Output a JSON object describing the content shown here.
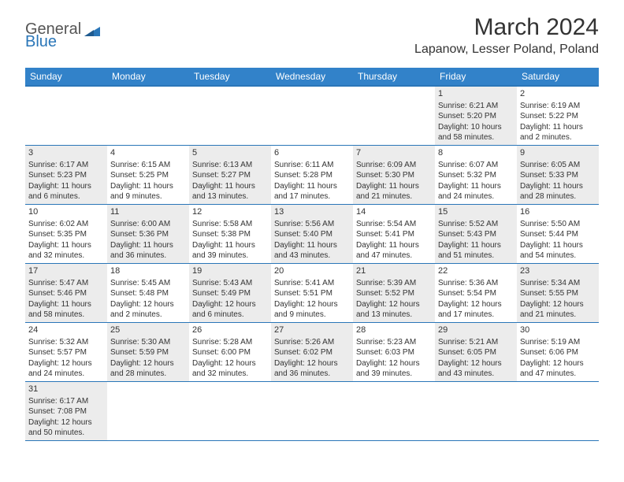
{
  "brand": {
    "general": "General",
    "blue": "Blue"
  },
  "title": "March 2024",
  "location": "Lapanow, Lesser Poland, Poland",
  "day_headers": [
    "Sunday",
    "Monday",
    "Tuesday",
    "Wednesday",
    "Thursday",
    "Friday",
    "Saturday"
  ],
  "colors": {
    "header_bg": "#3282c9",
    "border": "#2a76b8",
    "shade": "#ececec",
    "text": "#333333",
    "logo_gray": "#555555",
    "logo_blue": "#2a76b8"
  },
  "weeks": [
    [
      {
        "empty": true
      },
      {
        "empty": true
      },
      {
        "empty": true
      },
      {
        "empty": true
      },
      {
        "empty": true
      },
      {
        "num": "1",
        "shaded": true,
        "sunrise": "Sunrise: 6:21 AM",
        "sunset": "Sunset: 5:20 PM",
        "daylight": "Daylight: 10 hours and 58 minutes."
      },
      {
        "num": "2",
        "shaded": false,
        "sunrise": "Sunrise: 6:19 AM",
        "sunset": "Sunset: 5:22 PM",
        "daylight": "Daylight: 11 hours and 2 minutes."
      }
    ],
    [
      {
        "num": "3",
        "shaded": true,
        "sunrise": "Sunrise: 6:17 AM",
        "sunset": "Sunset: 5:23 PM",
        "daylight": "Daylight: 11 hours and 6 minutes."
      },
      {
        "num": "4",
        "shaded": false,
        "sunrise": "Sunrise: 6:15 AM",
        "sunset": "Sunset: 5:25 PM",
        "daylight": "Daylight: 11 hours and 9 minutes."
      },
      {
        "num": "5",
        "shaded": true,
        "sunrise": "Sunrise: 6:13 AM",
        "sunset": "Sunset: 5:27 PM",
        "daylight": "Daylight: 11 hours and 13 minutes."
      },
      {
        "num": "6",
        "shaded": false,
        "sunrise": "Sunrise: 6:11 AM",
        "sunset": "Sunset: 5:28 PM",
        "daylight": "Daylight: 11 hours and 17 minutes."
      },
      {
        "num": "7",
        "shaded": true,
        "sunrise": "Sunrise: 6:09 AM",
        "sunset": "Sunset: 5:30 PM",
        "daylight": "Daylight: 11 hours and 21 minutes."
      },
      {
        "num": "8",
        "shaded": false,
        "sunrise": "Sunrise: 6:07 AM",
        "sunset": "Sunset: 5:32 PM",
        "daylight": "Daylight: 11 hours and 24 minutes."
      },
      {
        "num": "9",
        "shaded": true,
        "sunrise": "Sunrise: 6:05 AM",
        "sunset": "Sunset: 5:33 PM",
        "daylight": "Daylight: 11 hours and 28 minutes."
      }
    ],
    [
      {
        "num": "10",
        "shaded": false,
        "sunrise": "Sunrise: 6:02 AM",
        "sunset": "Sunset: 5:35 PM",
        "daylight": "Daylight: 11 hours and 32 minutes."
      },
      {
        "num": "11",
        "shaded": true,
        "sunrise": "Sunrise: 6:00 AM",
        "sunset": "Sunset: 5:36 PM",
        "daylight": "Daylight: 11 hours and 36 minutes."
      },
      {
        "num": "12",
        "shaded": false,
        "sunrise": "Sunrise: 5:58 AM",
        "sunset": "Sunset: 5:38 PM",
        "daylight": "Daylight: 11 hours and 39 minutes."
      },
      {
        "num": "13",
        "shaded": true,
        "sunrise": "Sunrise: 5:56 AM",
        "sunset": "Sunset: 5:40 PM",
        "daylight": "Daylight: 11 hours and 43 minutes."
      },
      {
        "num": "14",
        "shaded": false,
        "sunrise": "Sunrise: 5:54 AM",
        "sunset": "Sunset: 5:41 PM",
        "daylight": "Daylight: 11 hours and 47 minutes."
      },
      {
        "num": "15",
        "shaded": true,
        "sunrise": "Sunrise: 5:52 AM",
        "sunset": "Sunset: 5:43 PM",
        "daylight": "Daylight: 11 hours and 51 minutes."
      },
      {
        "num": "16",
        "shaded": false,
        "sunrise": "Sunrise: 5:50 AM",
        "sunset": "Sunset: 5:44 PM",
        "daylight": "Daylight: 11 hours and 54 minutes."
      }
    ],
    [
      {
        "num": "17",
        "shaded": true,
        "sunrise": "Sunrise: 5:47 AM",
        "sunset": "Sunset: 5:46 PM",
        "daylight": "Daylight: 11 hours and 58 minutes."
      },
      {
        "num": "18",
        "shaded": false,
        "sunrise": "Sunrise: 5:45 AM",
        "sunset": "Sunset: 5:48 PM",
        "daylight": "Daylight: 12 hours and 2 minutes."
      },
      {
        "num": "19",
        "shaded": true,
        "sunrise": "Sunrise: 5:43 AM",
        "sunset": "Sunset: 5:49 PM",
        "daylight": "Daylight: 12 hours and 6 minutes."
      },
      {
        "num": "20",
        "shaded": false,
        "sunrise": "Sunrise: 5:41 AM",
        "sunset": "Sunset: 5:51 PM",
        "daylight": "Daylight: 12 hours and 9 minutes."
      },
      {
        "num": "21",
        "shaded": true,
        "sunrise": "Sunrise: 5:39 AM",
        "sunset": "Sunset: 5:52 PM",
        "daylight": "Daylight: 12 hours and 13 minutes."
      },
      {
        "num": "22",
        "shaded": false,
        "sunrise": "Sunrise: 5:36 AM",
        "sunset": "Sunset: 5:54 PM",
        "daylight": "Daylight: 12 hours and 17 minutes."
      },
      {
        "num": "23",
        "shaded": true,
        "sunrise": "Sunrise: 5:34 AM",
        "sunset": "Sunset: 5:55 PM",
        "daylight": "Daylight: 12 hours and 21 minutes."
      }
    ],
    [
      {
        "num": "24",
        "shaded": false,
        "sunrise": "Sunrise: 5:32 AM",
        "sunset": "Sunset: 5:57 PM",
        "daylight": "Daylight: 12 hours and 24 minutes."
      },
      {
        "num": "25",
        "shaded": true,
        "sunrise": "Sunrise: 5:30 AM",
        "sunset": "Sunset: 5:59 PM",
        "daylight": "Daylight: 12 hours and 28 minutes."
      },
      {
        "num": "26",
        "shaded": false,
        "sunrise": "Sunrise: 5:28 AM",
        "sunset": "Sunset: 6:00 PM",
        "daylight": "Daylight: 12 hours and 32 minutes."
      },
      {
        "num": "27",
        "shaded": true,
        "sunrise": "Sunrise: 5:26 AM",
        "sunset": "Sunset: 6:02 PM",
        "daylight": "Daylight: 12 hours and 36 minutes."
      },
      {
        "num": "28",
        "shaded": false,
        "sunrise": "Sunrise: 5:23 AM",
        "sunset": "Sunset: 6:03 PM",
        "daylight": "Daylight: 12 hours and 39 minutes."
      },
      {
        "num": "29",
        "shaded": true,
        "sunrise": "Sunrise: 5:21 AM",
        "sunset": "Sunset: 6:05 PM",
        "daylight": "Daylight: 12 hours and 43 minutes."
      },
      {
        "num": "30",
        "shaded": false,
        "sunrise": "Sunrise: 5:19 AM",
        "sunset": "Sunset: 6:06 PM",
        "daylight": "Daylight: 12 hours and 47 minutes."
      }
    ],
    [
      {
        "num": "31",
        "shaded": true,
        "sunrise": "Sunrise: 6:17 AM",
        "sunset": "Sunset: 7:08 PM",
        "daylight": "Daylight: 12 hours and 50 minutes."
      },
      {
        "empty": true
      },
      {
        "empty": true
      },
      {
        "empty": true
      },
      {
        "empty": true
      },
      {
        "empty": true
      },
      {
        "empty": true
      }
    ]
  ]
}
